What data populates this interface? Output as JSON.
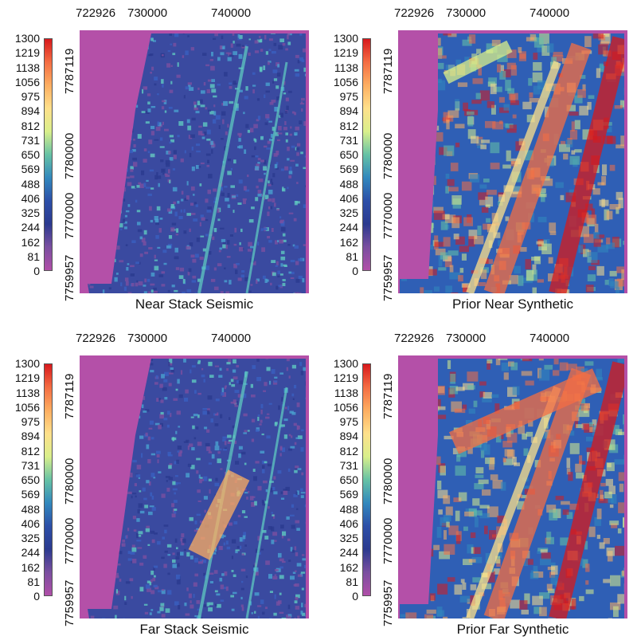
{
  "colorbar": {
    "labels": [
      "1300",
      "1219",
      "1138",
      "1056",
      "975",
      "894",
      "812",
      "731",
      "650",
      "569",
      "488",
      "406",
      "325",
      "244",
      "162",
      "81",
      "0"
    ],
    "colors": [
      "#d7191c",
      "#f46d43",
      "#fdae61",
      "#fee08b",
      "#d9ef8b",
      "#66c2a5",
      "#3288bd",
      "#2c4fa8",
      "#2b3a8f",
      "#7a4fa0",
      "#b04fa8"
    ]
  },
  "x_ticks": [
    "722926",
    "730000",
    "740000"
  ],
  "y_ticks": [
    "7787119",
    "7780000",
    "7770000",
    "7759957"
  ],
  "panels": [
    {
      "title": "Near Stack Seismic",
      "style": "near-seismic"
    },
    {
      "title": "Prior Near Synthetic",
      "style": "near-synth"
    },
    {
      "title": "Far Stack Seismic",
      "style": "far-seismic"
    },
    {
      "title": "Prior Far Synthetic",
      "style": "far-synth"
    }
  ],
  "background_color": "#b450a8"
}
